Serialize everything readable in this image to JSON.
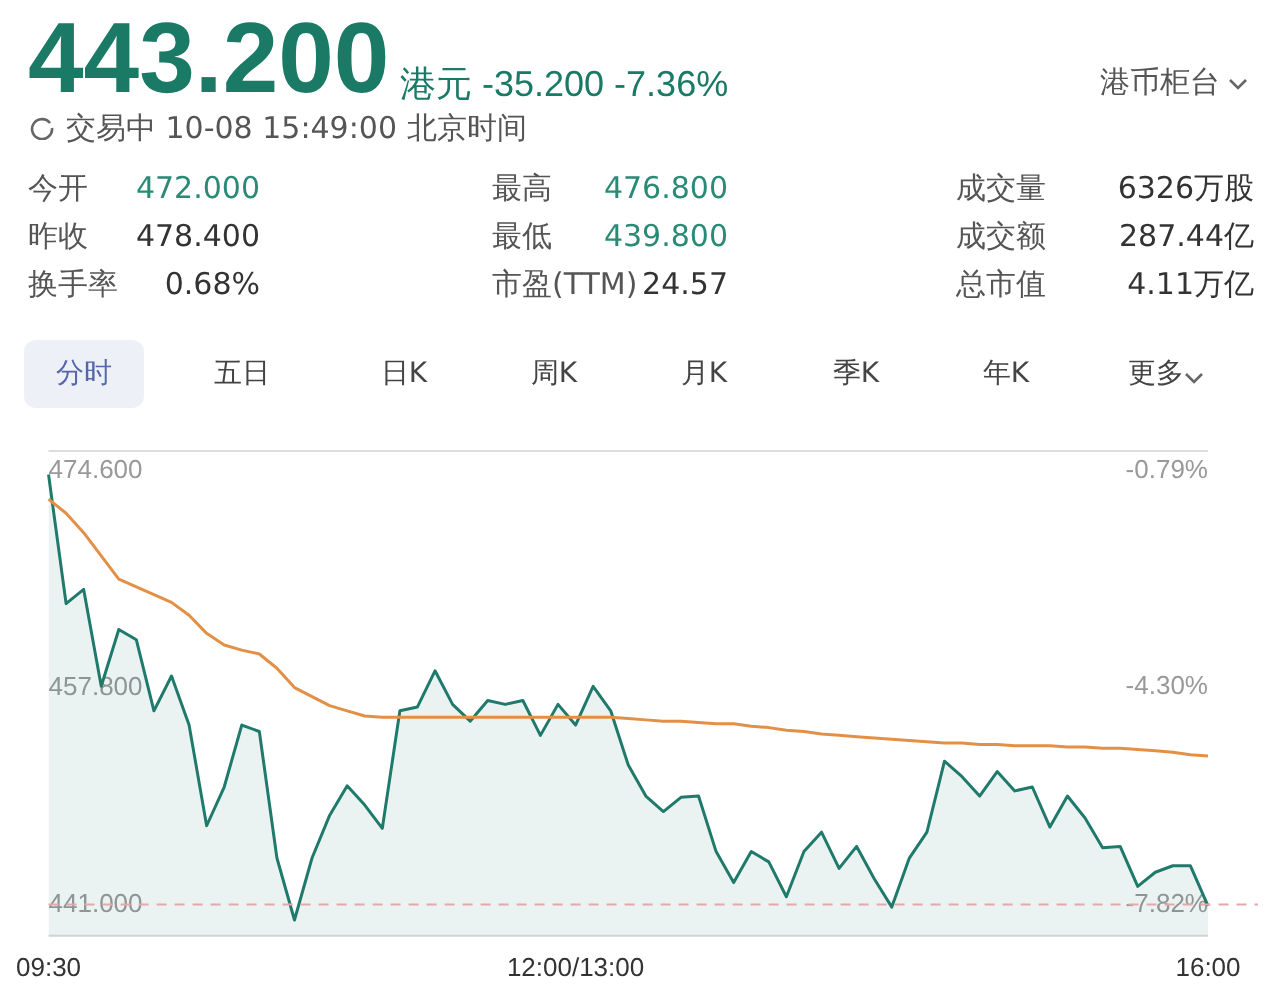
{
  "chart_data": {
    "type": "area",
    "title": "443.200",
    "subtitle": "港元 -35.200 -7.36%",
    "annotations": [
      "港币柜台",
      "交易中 10-08 15:49:00 北京时间",
      "今开",
      "472.000",
      "最高",
      "476.800",
      "成交量",
      "6326万股",
      "昨收",
      "478.400",
      "最低",
      "439.800",
      "成交额",
      "287.44亿",
      "换手率",
      "0.68%",
      "市盈(TTM)",
      "24.57",
      "总市值",
      "4.11万亿",
      "分时",
      "五日",
      "日K",
      "周K",
      "月K",
      "季K",
      "年K",
      "更多"
    ],
    "categories": [
      "09:30",
      null,
      null,
      null,
      null,
      null,
      null,
      null,
      null,
      null,
      null,
      null,
      null,
      null,
      null,
      null,
      null,
      null,
      null,
      null,
      null,
      null,
      null,
      null,
      null,
      null,
      null,
      null,
      null,
      null,
      "12:00/13:00",
      null,
      null,
      null,
      null,
      null,
      null,
      null,
      null,
      null,
      null,
      null,
      null,
      null,
      null,
      null,
      null,
      null,
      null,
      null,
      null,
      null,
      null,
      null,
      null,
      null,
      null,
      null,
      null,
      null,
      null,
      null,
      null,
      null,
      null,
      null,
      "16:00"
    ],
    "ylim": [
      438.5,
      476.2
    ],
    "yticks": [
      {
        "value": 474.6,
        "label": "474.600"
      },
      {
        "value": 457.8,
        "label": "457.800"
      },
      {
        "value": 441,
        "label": "441.000"
      }
    ],
    "y2lim": [
      -8.34,
      -0.46
    ],
    "y2ticks": [
      {
        "value": -0.79,
        "label": "-0.79%"
      },
      {
        "value": -4.3,
        "label": "-4.30%"
      },
      {
        "value": -7.82,
        "label": "-7.82%"
      }
    ],
    "grid": false,
    "legend": false,
    "marker": "none",
    "ref_lines": [
      {
        "axis": "y",
        "value": 441,
        "color": "#e3a8a8",
        "line_style": "dashed"
      }
    ],
    "series": [
      {
        "type": "area",
        "color": "#1f7a6c",
        "values": [
          474.3,
          464.3,
          465.4,
          457.9,
          462.3,
          461.5,
          456.0,
          458.7,
          454.9,
          447.1,
          450.1,
          454.9,
          454.4,
          444.6,
          439.8,
          444.6,
          447.9,
          450.2,
          448.7,
          446.9,
          456.0,
          456.3,
          459.1,
          456.5,
          455.2,
          456.8,
          456.5,
          456.8,
          454.1,
          456.5,
          454.9,
          457.9,
          456.0,
          451.8,
          449.4,
          448.2,
          449.3,
          449.4,
          445.1,
          442.7,
          445.1,
          444.3,
          441.6,
          445.1,
          446.6,
          443.8,
          445.5,
          443.0,
          440.8,
          444.6,
          446.6,
          452.1,
          450.9,
          449.4,
          451.3,
          449.8,
          450.1,
          447.0,
          449.4,
          447.7,
          445.4,
          445.5,
          442.4,
          443.5,
          444.0,
          444.0,
          440.9
        ]
      },
      {
        "type": "line",
        "color": "#e39046",
        "values": [
          472.4,
          471.3,
          469.8,
          468.0,
          466.2,
          465.6,
          465.0,
          464.4,
          463.4,
          462.0,
          461.1,
          460.7,
          460.4,
          459.3,
          457.8,
          457.1,
          456.4,
          456.0,
          455.6,
          455.5,
          455.5,
          455.5,
          455.5,
          455.5,
          455.5,
          455.5,
          455.5,
          455.5,
          455.5,
          455.5,
          455.5,
          455.5,
          455.5,
          455.4,
          455.3,
          455.2,
          455.2,
          455.1,
          455.0,
          455.0,
          454.8,
          454.7,
          454.5,
          454.4,
          454.2,
          454.1,
          454.0,
          453.9,
          453.8,
          453.7,
          453.6,
          453.5,
          453.5,
          453.4,
          453.4,
          453.3,
          453.3,
          453.3,
          453.2,
          453.2,
          453.1,
          453.1,
          453.0,
          452.9,
          452.8,
          452.6,
          452.5
        ]
      }
    ]
  }
}
